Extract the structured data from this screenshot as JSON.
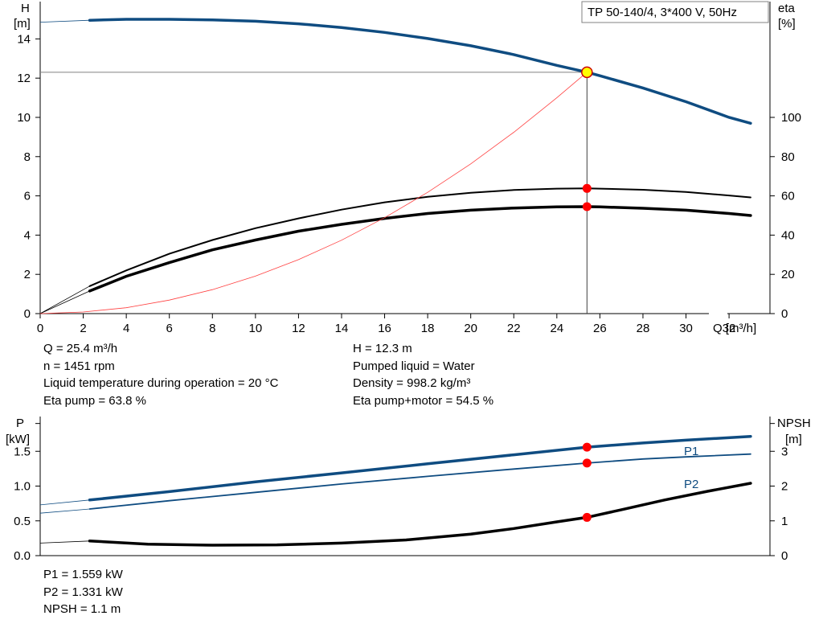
{
  "chart_data": [
    {
      "type": "line",
      "title": "TP 50-140/4, 3*400 V, 50Hz",
      "xlabel": "Q [m³/h]",
      "ylabel_left": [
        "H",
        "[m]"
      ],
      "ylabel_right": [
        "eta",
        "[%]"
      ],
      "xlim": [
        0,
        33.9
      ],
      "ylim_left": [
        0,
        15.9
      ],
      "ylim_right": [
        0,
        159
      ],
      "x_ticks": [
        0,
        2,
        4,
        6,
        8,
        10,
        12,
        14,
        16,
        18,
        20,
        22,
        24,
        26,
        28,
        30,
        32
      ],
      "y_ticks_left": [
        0,
        2,
        4,
        6,
        8,
        10,
        12,
        14
      ],
      "y_ticks_right": [
        0,
        20,
        40,
        60,
        80,
        100
      ],
      "grid": false,
      "series": [
        {
          "key": "H",
          "axis": "left",
          "color": "#0f4c81",
          "x": [
            2.3,
            4,
            6,
            8,
            10,
            12,
            14,
            16,
            18,
            20,
            22,
            24,
            25.4,
            26,
            28,
            30,
            32,
            33
          ],
          "y": [
            14.95,
            15.0,
            15.0,
            14.97,
            14.9,
            14.77,
            14.58,
            14.33,
            14.02,
            13.65,
            13.2,
            12.65,
            12.3,
            12.12,
            11.5,
            10.8,
            10.0,
            9.7
          ],
          "extension_x": [
            0,
            2.3
          ],
          "extension_y": [
            14.85,
            14.95
          ]
        },
        {
          "key": "eta_pump",
          "axis": "right",
          "color": "#000000",
          "x": [
            2.3,
            4,
            6,
            8,
            10,
            12,
            14,
            16,
            18,
            20,
            22,
            24,
            25.4,
            26,
            28,
            30,
            32,
            33
          ],
          "y": [
            14,
            22,
            30.5,
            37.5,
            43.5,
            48.5,
            53,
            56.7,
            59.5,
            61.6,
            63,
            63.7,
            63.8,
            63.7,
            63.1,
            62,
            60.2,
            59.2
          ],
          "extension_x": [
            0,
            2.3
          ],
          "extension_y": [
            0,
            14
          ]
        },
        {
          "key": "eta_pump_motor",
          "axis": "right",
          "color": "#000000",
          "x": [
            2.3,
            4,
            6,
            8,
            10,
            12,
            14,
            16,
            18,
            20,
            22,
            24,
            25.4,
            26,
            28,
            30,
            32,
            33
          ],
          "y": [
            11.5,
            19,
            26,
            32.5,
            37.5,
            42,
            45.5,
            48.5,
            51,
            52.7,
            53.8,
            54.4,
            54.5,
            54.4,
            53.7,
            52.7,
            51,
            50
          ],
          "extension_x": [
            0,
            2.3
          ],
          "extension_y": [
            0,
            11.5
          ]
        },
        {
          "key": "system",
          "axis": "left",
          "color": "#ff4040",
          "x": [
            0,
            2,
            4,
            6,
            8,
            10,
            12,
            14,
            16,
            18,
            20,
            22,
            24,
            25.4
          ],
          "y": [
            0,
            0.08,
            0.3,
            0.69,
            1.22,
            1.91,
            2.75,
            3.74,
            4.89,
            6.18,
            7.63,
            9.24,
            11.0,
            12.3
          ]
        }
      ],
      "operating_point": {
        "q": 25.4,
        "h": 12.3,
        "eta_pump": 63.8,
        "eta_total": 54.5
      }
    },
    {
      "type": "line",
      "xlim": [
        0,
        33.9
      ],
      "ylabel_left": [
        "P",
        "[kW]"
      ],
      "ylabel_right": [
        "NPSH",
        "[m]"
      ],
      "ylim_left": [
        0,
        2.0
      ],
      "ylim_right": [
        0,
        4.0
      ],
      "y_ticks_left": [
        "0.0",
        "0.5",
        "1.0",
        "1.5"
      ],
      "y_ticks_right": [
        "0",
        "1",
        "2",
        "3"
      ],
      "series": [
        {
          "name": "P1",
          "key": "P1",
          "axis": "left",
          "color": "#0f4c81",
          "x": [
            2.3,
            6,
            10,
            14,
            18,
            22,
            25.4,
            28,
            30,
            33
          ],
          "y": [
            0.8,
            0.92,
            1.06,
            1.19,
            1.32,
            1.45,
            1.559,
            1.62,
            1.66,
            1.715
          ],
          "extension_x": [
            0,
            2.3
          ],
          "extension_y": [
            0.73,
            0.8
          ]
        },
        {
          "name": "P2",
          "key": "P2",
          "axis": "left",
          "color": "#0f4c81",
          "x": [
            2.3,
            6,
            10,
            14,
            18,
            22,
            25.4,
            28,
            30,
            33
          ],
          "y": [
            0.67,
            0.79,
            0.91,
            1.03,
            1.14,
            1.245,
            1.331,
            1.39,
            1.42,
            1.46
          ],
          "extension_x": [
            0,
            2.3
          ],
          "extension_y": [
            0.61,
            0.67
          ]
        },
        {
          "key": "NPSH",
          "axis": "right",
          "color": "#000000",
          "x": [
            2.3,
            5,
            8,
            11,
            14,
            17,
            20,
            22,
            24,
            25.4,
            27,
            29,
            31,
            33
          ],
          "y": [
            0.42,
            0.33,
            0.3,
            0.31,
            0.36,
            0.45,
            0.62,
            0.78,
            0.97,
            1.1,
            1.32,
            1.6,
            1.85,
            2.08
          ],
          "extension_x": [
            0,
            2.3
          ],
          "extension_y": [
            0.36,
            0.42
          ]
        }
      ],
      "operating_point": {
        "q": 25.4,
        "p1": 1.559,
        "p2": 1.331,
        "npsh": 1.1
      }
    }
  ],
  "info_top": {
    "left": [
      "Q = 25.4 m³/h",
      "n = 1451 rpm",
      "Liquid temperature during operation = 20 °C",
      "Eta pump = 63.8 %"
    ],
    "right": [
      "H = 12.3 m",
      "Pumped liquid = Water",
      "Density = 998.2 kg/m³",
      "Eta pump+motor = 54.5 %"
    ]
  },
  "info_bottom": [
    "P1 = 1.559 kW",
    "P2 = 1.331 kW",
    "NPSH = 1.1 m"
  ],
  "colors": {
    "pump_curve": "#0f4c81",
    "marker": "#ff0000",
    "op_marker_fill": "#ffff00",
    "op_marker_stroke": "#cc0000",
    "system_curve": "#ff4040"
  }
}
